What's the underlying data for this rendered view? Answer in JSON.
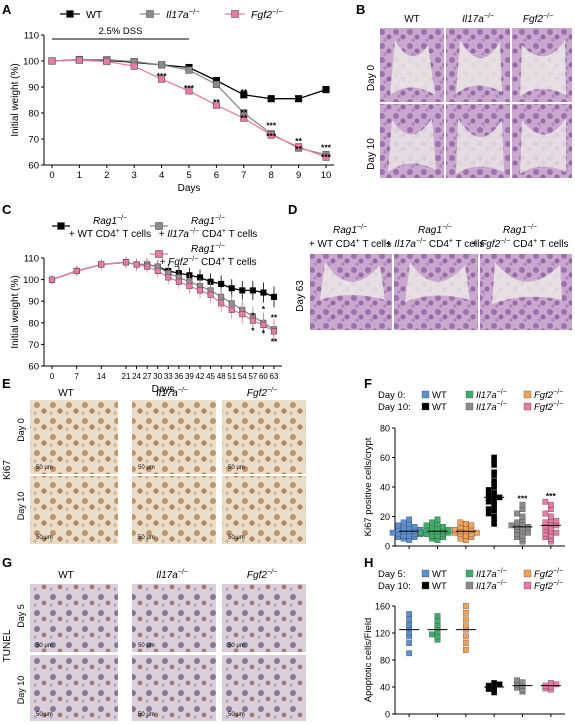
{
  "panels": {
    "a": {
      "letter": "A",
      "chart_data": {
        "type": "line",
        "ylabel": "Initial weight (%)",
        "xlabel": "Days",
        "x": [
          0,
          1,
          2,
          3,
          4,
          5,
          6,
          7,
          8,
          9,
          10
        ],
        "ylim": [
          60,
          110
        ],
        "yticks": [
          "60",
          "70",
          "80",
          "90",
          "100",
          "110"
        ],
        "xticks": [
          "0",
          "1",
          "2",
          "3",
          "4",
          "5",
          "6",
          "7",
          "8",
          "9",
          "10"
        ],
        "treatment_label": "2.5% DSS",
        "treatment_days": [
          0,
          5
        ],
        "series": [
          {
            "name": "WT",
            "color": "#000000",
            "marker": "square",
            "values": [
              100,
              100.5,
              100.2,
              99.5,
              98.5,
              97.5,
              92.5,
              87,
              85.5,
              85.5,
              89
            ]
          },
          {
            "name": "Il17a",
            "sup": "−/−",
            "color": "#8c8c8c",
            "marker": "square",
            "values": [
              100,
              100.5,
              100.5,
              99.8,
              98.5,
              96.5,
              91,
              80,
              72,
              66.5,
              64
            ]
          },
          {
            "name": "Fgf2",
            "sup": "−/−",
            "color": "#e97aa3",
            "marker": "square",
            "values": [
              100,
              100.3,
              99.8,
              98,
              93,
              88.5,
              83,
              78,
              71.5,
              67,
              63
            ]
          }
        ],
        "annotations": [
          {
            "x": 4,
            "y": 93,
            "text": "***"
          },
          {
            "x": 5,
            "y": 88.5,
            "text": "***"
          },
          {
            "x": 6,
            "y": 83,
            "text": "**"
          },
          {
            "x": 7,
            "y": 87,
            "text": "**"
          },
          {
            "x": 7,
            "y": 79,
            "text": "**"
          },
          {
            "x": 7,
            "y": 77,
            "text": "**"
          },
          {
            "x": 8,
            "y": 74,
            "text": "***"
          },
          {
            "x": 8,
            "y": 70,
            "text": "***"
          },
          {
            "x": 9,
            "y": 68,
            "text": "**"
          },
          {
            "x": 9,
            "y": 65,
            "text": "**"
          },
          {
            "x": 10,
            "y": 65.5,
            "text": "***"
          },
          {
            "x": 10,
            "y": 62,
            "text": "***"
          }
        ]
      }
    },
    "b": {
      "letter": "B",
      "col_labels": [
        {
          "text": "WT",
          "sup": ""
        },
        {
          "text": "Il17a",
          "sup": "−/−"
        },
        {
          "text": "Fgf2",
          "sup": "−/−"
        }
      ],
      "row_labels": [
        "Day 0",
        "Day 10"
      ]
    },
    "c": {
      "letter": "C",
      "chart_data": {
        "type": "line",
        "ylabel": "Initial weight (%)",
        "xlabel": "Days",
        "x": [
          0,
          7,
          14,
          21,
          24,
          27,
          30,
          33,
          36,
          39,
          42,
          45,
          48,
          51,
          54,
          57,
          60,
          63
        ],
        "ylim": [
          60,
          110
        ],
        "yticks": [
          "60",
          "70",
          "80",
          "90",
          "100",
          "110"
        ],
        "xticks": [
          "0",
          "7",
          "14",
          "21",
          "24",
          "27",
          "30",
          "33",
          "36",
          "39",
          "42",
          "45",
          "48",
          "51",
          "54",
          "57",
          "60",
          "63"
        ],
        "series": [
          {
            "name": "WT",
            "color": "#000000",
            "marker": "square",
            "values": [
              100,
              104,
              107,
              108,
              107,
              107,
              106,
              104,
              103,
              102,
              101,
              99,
              98,
              96,
              95,
              95,
              94,
              92
            ]
          },
          {
            "name": "Il17a",
            "color": "#8c8c8c",
            "marker": "square",
            "values": [
              100,
              104,
              107,
              108,
              107,
              107,
              106,
              103,
              101,
              99,
              97,
              95,
              92,
              89,
              86,
              83,
              80,
              77
            ]
          },
          {
            "name": "Fgf2",
            "color": "#e97aa3",
            "marker": "square",
            "values": [
              100,
              104,
              107,
              108,
              107,
              106,
              104,
              101,
              99,
              97,
              95,
              93,
              89,
              86,
              84,
              81,
              79,
              76
            ]
          }
        ],
        "legend": [
          {
            "pre": "Rag1",
            "sup": "−/−",
            "line2": "+ WT CD4",
            "sup2": "+",
            "post": " T cells"
          },
          {
            "pre": "Rag1",
            "sup": "−/−",
            "line2": "+ Il17a",
            "sup2b": "−/−",
            "line2b": " CD4",
            "sup2": "+",
            "post": " T cells"
          },
          {
            "pre": "Rag1",
            "sup": "−/−",
            "line2": "+ Fgf2",
            "sup2b": "−/−",
            "line2b": " CD4",
            "sup2": "+",
            "post": " T cells"
          }
        ],
        "annotations": [
          {
            "x": 57,
            "y": 82,
            "text": "*"
          },
          {
            "x": 57,
            "y": 75,
            "text": "*"
          },
          {
            "x": 60,
            "y": 85,
            "text": "*"
          },
          {
            "x": 60,
            "y": 74,
            "text": "*"
          },
          {
            "x": 63,
            "y": 81,
            "text": "**"
          },
          {
            "x": 63,
            "y": 70,
            "text": "**"
          }
        ]
      }
    },
    "d": {
      "letter": "D",
      "row_label": "Day 63"
    },
    "e": {
      "letter": "E",
      "side_label": "Ki67",
      "col_labels": [
        {
          "text": "WT",
          "sup": ""
        },
        {
          "text": "Il17a",
          "sup": "−/−"
        },
        {
          "text": "Fgf2",
          "sup": "−/−"
        }
      ],
      "row_labels": [
        "Day 0",
        "Day 10"
      ],
      "scale": "50 μm"
    },
    "f": {
      "letter": "F",
      "chart_data": {
        "type": "scatter",
        "ylabel": "Ki67 positive cells/crypt",
        "ylim": [
          0,
          80
        ],
        "yticks": [
          "0",
          "20",
          "40",
          "60",
          "80"
        ],
        "legend_rows": [
          {
            "prefix": "Day 0:",
            "items": [
              {
                "name": "WT",
                "color": "#5a8fd1"
              },
              {
                "name": "Il17a",
                "sup": "−/−",
                "color": "#3fae6b"
              },
              {
                "name": "Fgf2",
                "sup": "−/−",
                "color": "#f0a25a"
              }
            ]
          },
          {
            "prefix": "Day 10:",
            "items": [
              {
                "name": "WT",
                "color": "#000000"
              },
              {
                "name": "Il17a",
                "sup": "−/−",
                "color": "#8c8c8c"
              },
              {
                "name": "Fgf2",
                "sup": "−/−",
                "color": "#e97aa3"
              }
            ]
          }
        ],
        "groups": [
          {
            "color": "#5a8fd1",
            "mean": 10,
            "values": [
              4,
              5,
              6,
              6,
              7,
              7,
              8,
              8,
              8,
              9,
              9,
              10,
              10,
              10,
              11,
              11,
              12,
              12,
              13,
              14,
              15,
              16,
              18
            ]
          },
          {
            "color": "#3fae6b",
            "mean": 10,
            "values": [
              4,
              5,
              6,
              7,
              7,
              8,
              8,
              9,
              9,
              10,
              10,
              10,
              11,
              11,
              12,
              12,
              13,
              14,
              15,
              16,
              18
            ]
          },
          {
            "color": "#f0a25a",
            "mean": 10,
            "values": [
              4,
              5,
              6,
              7,
              8,
              8,
              9,
              9,
              10,
              10,
              11,
              11,
              12,
              13,
              14,
              15,
              16
            ]
          },
          {
            "color": "#000000",
            "mean": 33,
            "values": [
              15,
              18,
              20,
              22,
              24,
              25,
              27,
              28,
              30,
              31,
              32,
              33,
              34,
              35,
              36,
              38,
              40,
              42,
              44,
              48,
              50,
              55,
              58,
              60
            ]
          },
          {
            "color": "#8c8c8c",
            "mean": 13,
            "values": [
              3,
              5,
              6,
              7,
              8,
              9,
              10,
              11,
              12,
              13,
              13,
              14,
              15,
              16,
              18,
              20,
              22,
              25,
              28
            ]
          },
          {
            "color": "#e97aa3",
            "mean": 14,
            "values": [
              3,
              5,
              6,
              7,
              8,
              9,
              10,
              11,
              12,
              13,
              14,
              15,
              16,
              17,
              18,
              20,
              22,
              25,
              28,
              30
            ]
          }
        ],
        "annotations": [
          {
            "group": 4,
            "text": "***"
          },
          {
            "group": 5,
            "text": "***"
          }
        ]
      }
    },
    "g": {
      "letter": "G",
      "side_label": "TUNEL",
      "col_labels": [
        {
          "text": "WT",
          "sup": ""
        },
        {
          "text": "Il17a",
          "sup": "−/−"
        },
        {
          "text": "Fgf2",
          "sup": "−/−"
        }
      ],
      "row_labels": [
        "Day 5",
        "Day 10"
      ],
      "scale": "50 μm"
    },
    "h": {
      "letter": "H",
      "chart_data": {
        "type": "scatter",
        "ylabel": "Apoptotic cells/Field",
        "ylim": [
          0,
          160
        ],
        "yticks": [
          "0",
          "40",
          "80",
          "120",
          "160"
        ],
        "legend_rows": [
          {
            "prefix": "Day 5:",
            "items": [
              {
                "name": "WT",
                "color": "#5a8fd1"
              },
              {
                "name": "Il17a",
                "sup": "−/−",
                "color": "#3fae6b"
              },
              {
                "name": "Fgf2",
                "sup": "−/−",
                "color": "#f0a25a"
              }
            ]
          },
          {
            "prefix": "Day 10:",
            "items": [
              {
                "name": "WT",
                "color": "#000000"
              },
              {
                "name": "Il17a",
                "sup": "−/−",
                "color": "#8c8c8c"
              },
              {
                "name": "Fgf2",
                "sup": "−/−",
                "color": "#e97aa3"
              }
            ]
          }
        ],
        "groups": [
          {
            "color": "#5a8fd1",
            "mean": 125,
            "values": [
              90,
              105,
              115,
              120,
              128,
              132,
              140,
              148
            ]
          },
          {
            "color": "#3fae6b",
            "mean": 125,
            "values": [
              110,
              115,
              118,
              122,
              128,
              132,
              138,
              145
            ]
          },
          {
            "color": "#f0a25a",
            "mean": 125,
            "values": [
              95,
              105,
              115,
              125,
              130,
              140,
              150,
              160
            ]
          },
          {
            "color": "#000000",
            "mean": 40,
            "values": [
              32,
              35,
              37,
              40,
              42,
              44,
              46
            ]
          },
          {
            "color": "#8c8c8c",
            "mean": 42,
            "values": [
              33,
              36,
              39,
              42,
              44,
              47,
              50
            ]
          },
          {
            "color": "#e97aa3",
            "mean": 42,
            "values": [
              36,
              38,
              40,
              42,
              44,
              46
            ]
          }
        ]
      }
    }
  }
}
